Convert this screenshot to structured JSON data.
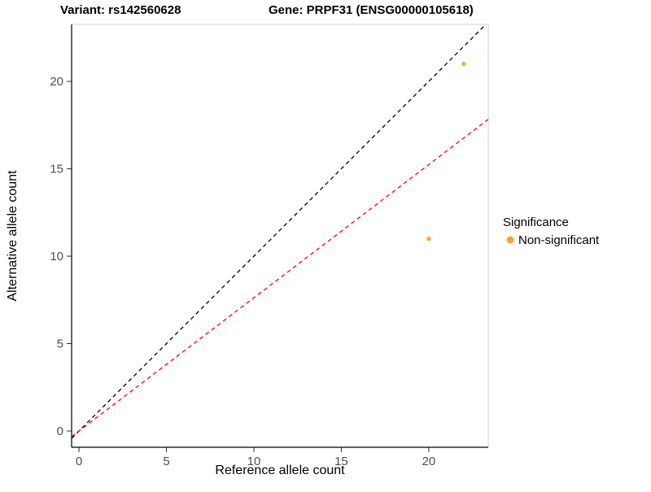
{
  "titles": {
    "variant": "Variant: rs142560628",
    "gene": "Gene: PRPF31 (ENSG00000105618)"
  },
  "axes": {
    "x_label": "Reference allele count",
    "y_label": "Alternative allele count"
  },
  "legend": {
    "title": "Significance",
    "items": [
      {
        "label": "Non-significant",
        "color": "#FFA424"
      }
    ]
  },
  "chart_data": {
    "type": "scatter",
    "title": "Variant: rs142560628 | Gene: PRPF31 (ENSG00000105618)",
    "xlabel": "Reference allele count",
    "ylabel": "Alternative allele count",
    "points": [
      {
        "x": 22,
        "y": 21,
        "series": "Non-significant"
      },
      {
        "x": 20,
        "y": 11,
        "series": "Non-significant"
      }
    ],
    "point_color": "#FFA424",
    "lines": [
      {
        "name": "identity-line",
        "slope": 1,
        "intercept": 0,
        "color": "#000000",
        "style": "dashed"
      },
      {
        "name": "allelic-ratio-line",
        "slope": 0.762,
        "intercept": 0,
        "color": "#FF0000",
        "style": "dashed"
      }
    ],
    "x_ticks": [
      0,
      5,
      10,
      15,
      20
    ],
    "y_ticks": [
      0,
      5,
      10,
      15,
      20
    ],
    "xlim": [
      -0.42,
      23.4
    ],
    "ylim": [
      -0.93,
      23.26
    ],
    "grid": false,
    "legend_position": "right"
  }
}
